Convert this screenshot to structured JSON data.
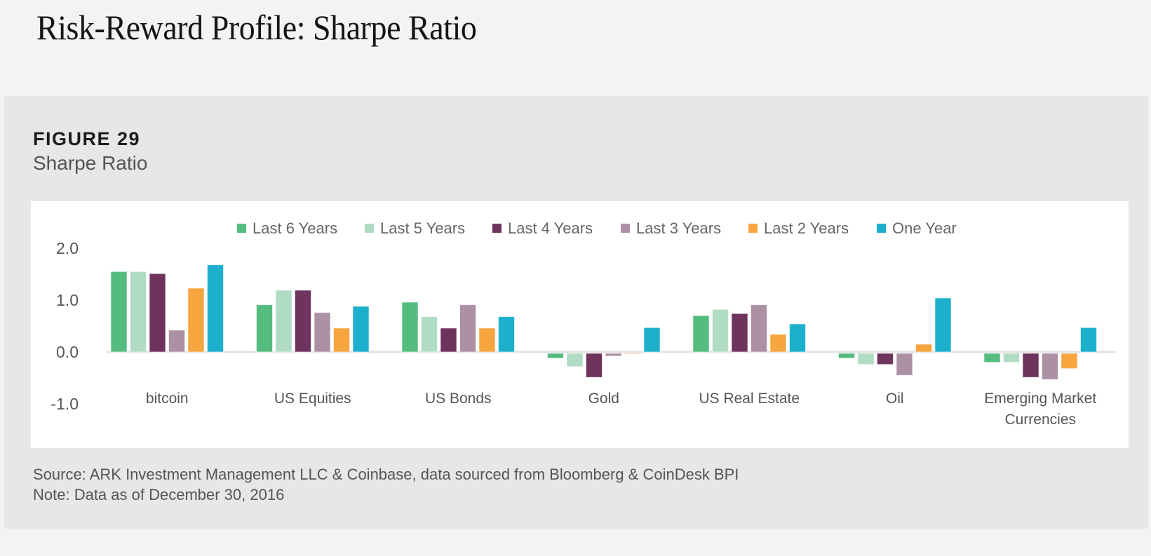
{
  "page": {
    "title": "Risk-Reward Profile: Sharpe Ratio"
  },
  "figure": {
    "label": "FIGURE 29",
    "subtitle": "Sharpe Ratio",
    "source": "Source: ARK Investment Management LLC & Coinbase, data sourced from Bloomberg & CoinDesk BPI",
    "note": "Note: Data as of December 30, 2016"
  },
  "chart_data": {
    "type": "bar",
    "title": "Sharpe Ratio",
    "xlabel": "",
    "ylabel": "",
    "ylim": [
      -1.0,
      2.0
    ],
    "yticks": [
      2.0,
      1.0,
      0.0,
      -1.0
    ],
    "ytick_labels": [
      "2.0",
      "1.0",
      "0.0",
      "-1.0"
    ],
    "grid": false,
    "legend_position": "top-center",
    "categories": [
      [
        "bitcoin"
      ],
      [
        "US Equities"
      ],
      [
        "US Bonds"
      ],
      [
        "Gold"
      ],
      [
        "US Real Estate"
      ],
      [
        "Oil"
      ],
      [
        "Emerging Market",
        "Currencies"
      ]
    ],
    "series": [
      {
        "name": "Last 6 Years",
        "color": "#55bc80",
        "values": [
          1.55,
          0.91,
          0.96,
          -0.12,
          0.7,
          -0.12,
          -0.2
        ]
      },
      {
        "name": "Last 5 Years",
        "color": "#b0dcc3",
        "values": [
          1.55,
          1.19,
          0.68,
          -0.28,
          0.82,
          -0.24,
          -0.2
        ]
      },
      {
        "name": "Last 4 Years",
        "color": "#6e345e",
        "values": [
          1.51,
          1.19,
          0.46,
          -0.49,
          0.74,
          -0.24,
          -0.49
        ]
      },
      {
        "name": "Last 3 Years",
        "color": "#ac90a4",
        "values": [
          0.42,
          0.76,
          0.91,
          -0.08,
          0.91,
          -0.45,
          -0.53
        ]
      },
      {
        "name": "Last 2 Years",
        "color": "#f6a53f",
        "values": [
          1.23,
          0.46,
          0.46,
          -0.04,
          0.34,
          0.15,
          -0.32
        ]
      },
      {
        "name": "One Year",
        "color": "#1cb0cd",
        "values": [
          1.68,
          0.88,
          0.68,
          0.47,
          0.54,
          1.04,
          0.47
        ]
      }
    ]
  }
}
